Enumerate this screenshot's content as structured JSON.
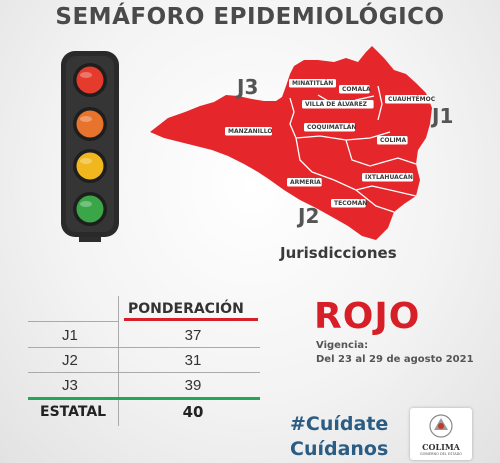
{
  "title": "SEMÁFORO EPIDEMIOLÓGICO",
  "traffic_light": {
    "lights": [
      {
        "name": "red",
        "color": "#e43b2c"
      },
      {
        "name": "orange",
        "color": "#e8732c"
      },
      {
        "name": "yellow",
        "color": "#f0b71e"
      },
      {
        "name": "green",
        "color": "#3aa648"
      }
    ],
    "active": "red"
  },
  "map": {
    "fill_color": "#e5262b",
    "jurisdiction_labels": [
      "J1",
      "J2",
      "J3"
    ],
    "municipalities": [
      "MINATITLÁN",
      "COMALA",
      "CUAUHTÉMOC",
      "VILLA DE ÁLVAREZ",
      "COQUIMATLÁN",
      "MANZANILLO",
      "COLIMA",
      "ARMERÍA",
      "IXTLAHUACÁN",
      "TECOMÁN"
    ],
    "caption": "Jurisdicciones"
  },
  "table": {
    "header": "PONDERACIÓN",
    "rows": [
      {
        "label": "J1",
        "value": "37"
      },
      {
        "label": "J2",
        "value": "31"
      },
      {
        "label": "J3",
        "value": "39"
      }
    ],
    "total_label": "ESTATAL",
    "total_value": "40"
  },
  "status": {
    "color_word": "ROJO",
    "color": "#d61f26",
    "vigencia_label": "Vigencia:",
    "vigencia_dates": "Del 23 al 29 de agosto 2021"
  },
  "hashtags": [
    "#Cuídate",
    "Cuídanos"
  ],
  "logo": {
    "name": "COLIMA",
    "subtitle": "GOBIERNO DEL ESTADO"
  }
}
